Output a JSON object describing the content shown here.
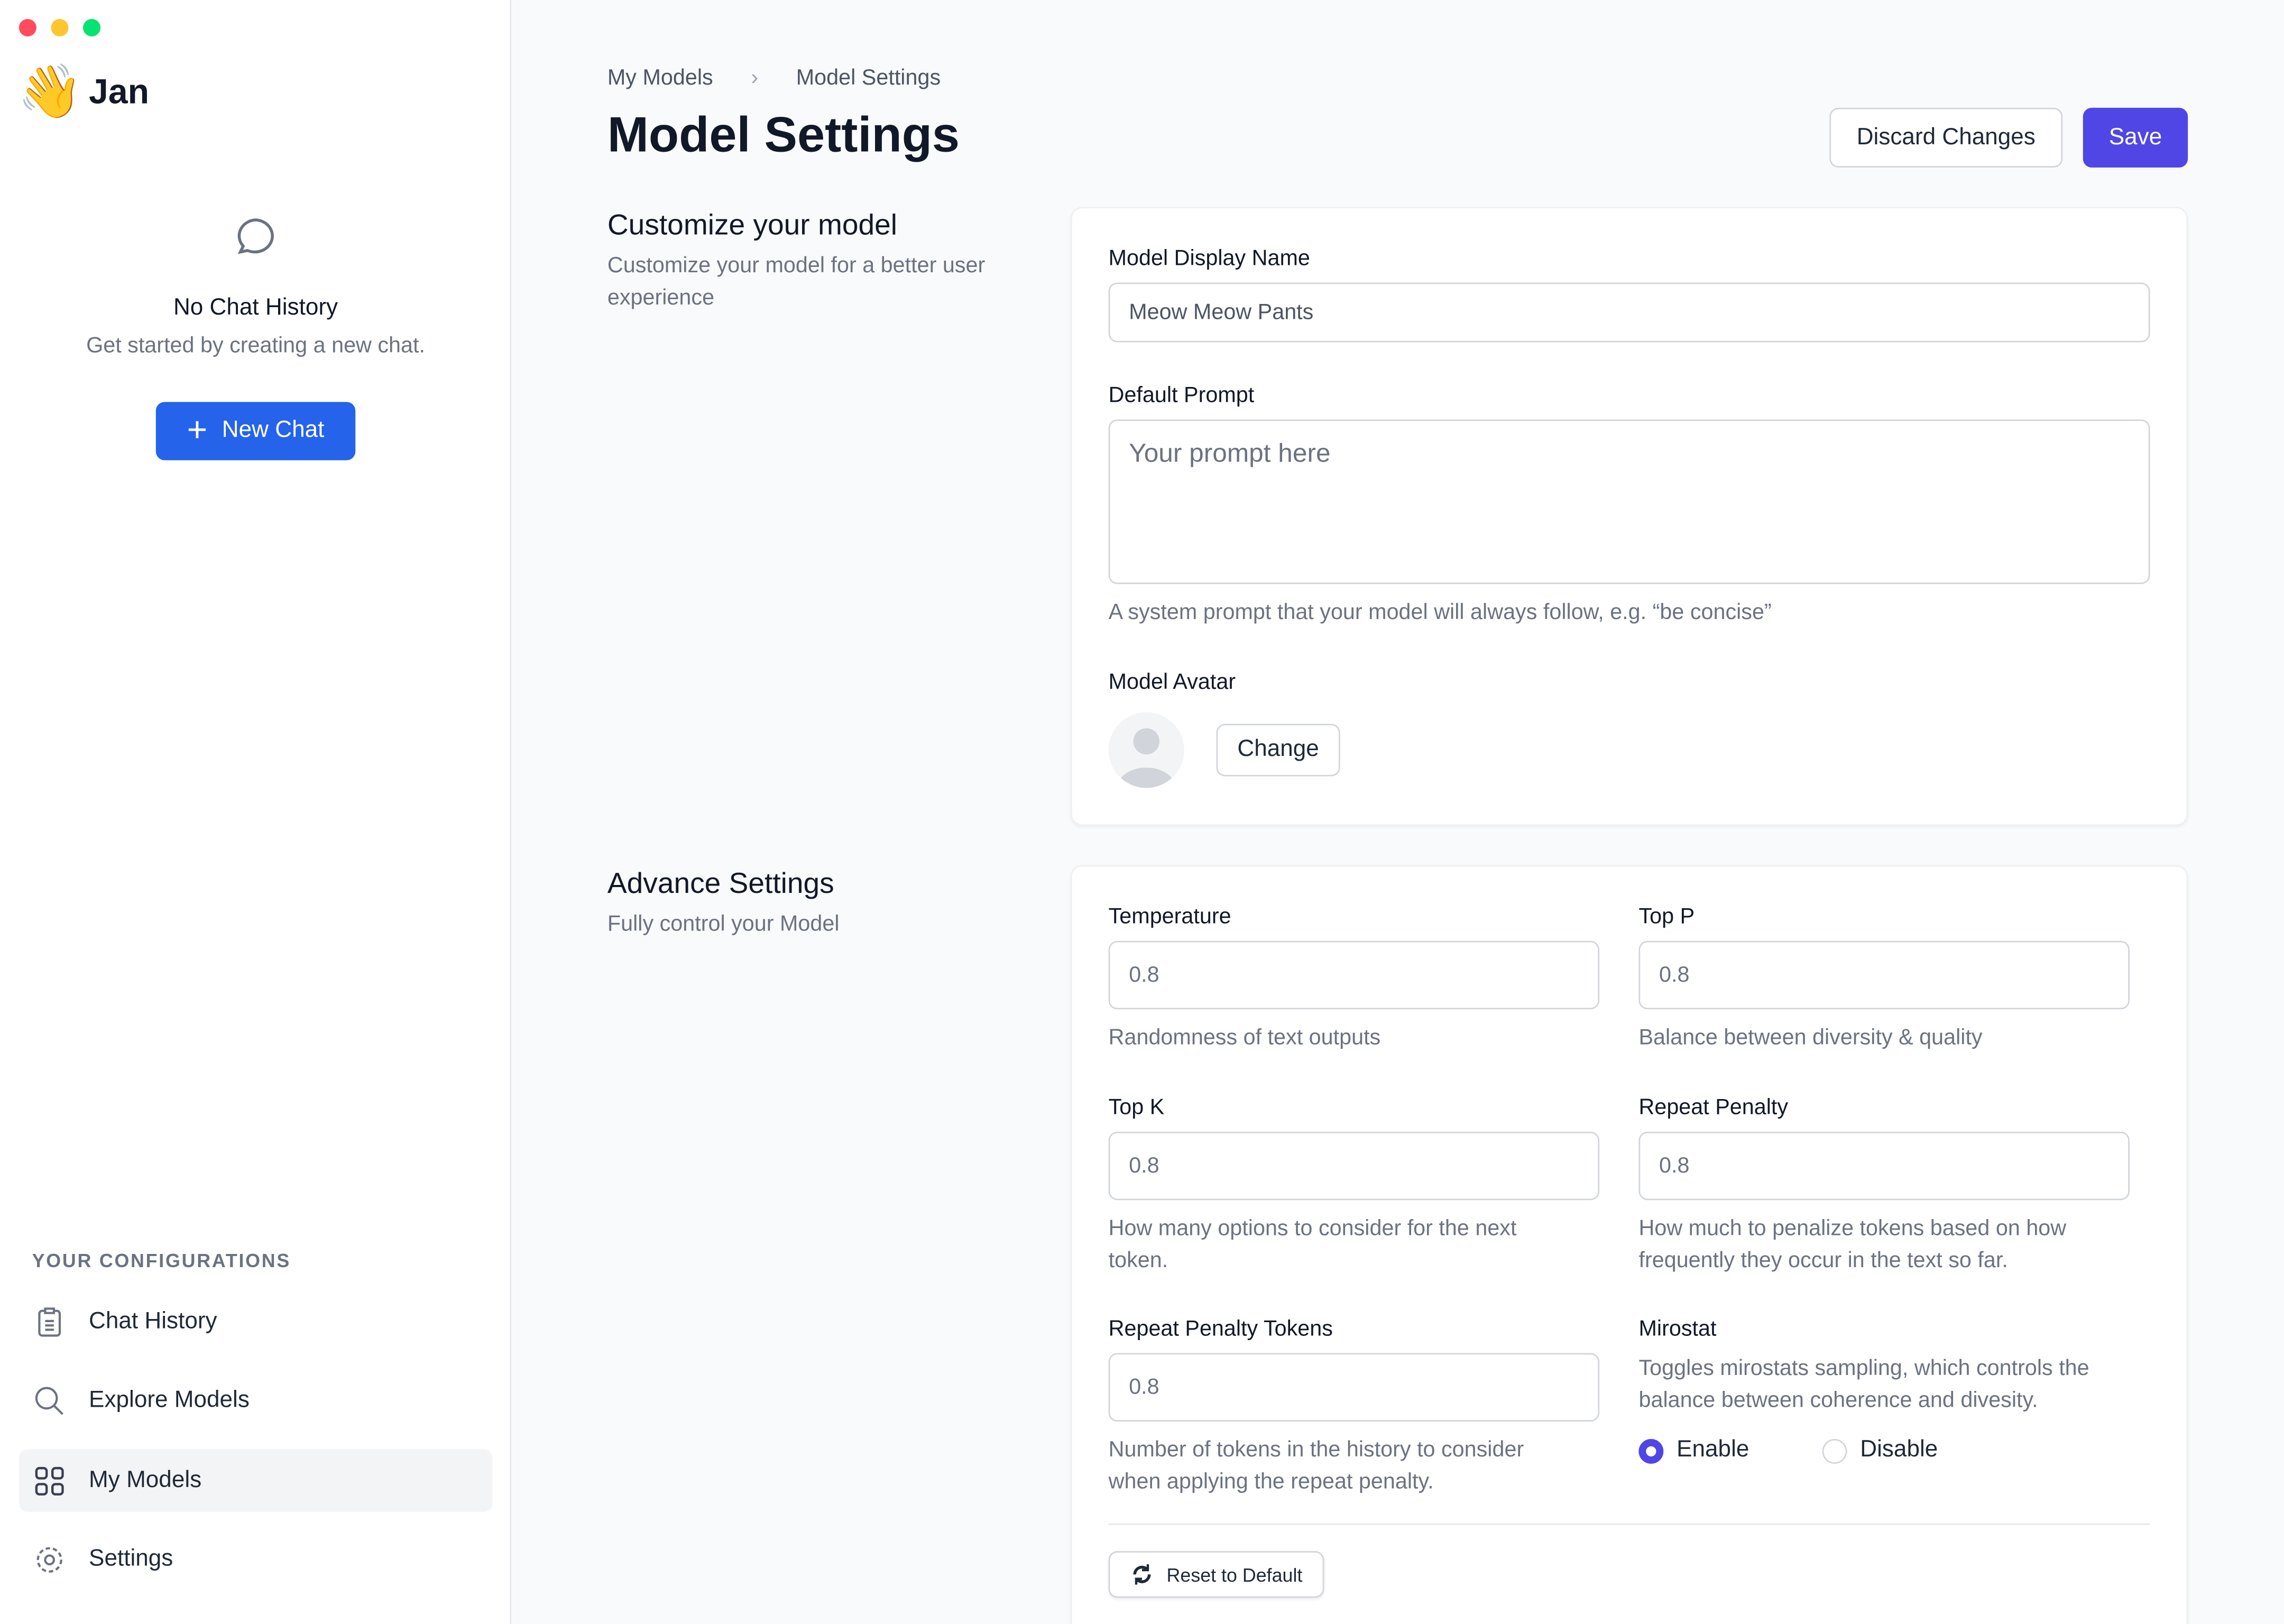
{
  "window": {
    "traffic_lights": {
      "close": "#ff4d5e",
      "minimize": "#fec52e",
      "zoom": "#08e273"
    }
  },
  "sidebar": {
    "app_name": "Jan",
    "logo_icon": "waving-hand-emoji",
    "empty_state": {
      "title": "No Chat History",
      "subtitle": "Get started by creating a new chat.",
      "button": "New Chat"
    },
    "section_title": "YOUR CONFIGURATIONS",
    "items": [
      {
        "label": "Chat History",
        "icon": "clipboard-icon",
        "active": false
      },
      {
        "label": "Explore Models",
        "icon": "search-icon",
        "active": false
      },
      {
        "label": "My Models",
        "icon": "grid-icon",
        "active": true
      },
      {
        "label": "Settings",
        "icon": "gear-icon",
        "active": false
      }
    ]
  },
  "header": {
    "breadcrumb": [
      "My Models",
      "Model Settings"
    ],
    "title": "Model Settings",
    "discard": "Discard Changes",
    "save": "Save"
  },
  "customize": {
    "title": "Customize your model",
    "description": "Customize your model for a better user experience",
    "display_name_label": "Model Display Name",
    "display_name_value": "Meow Meow Pants",
    "prompt_label": "Default Prompt",
    "prompt_placeholder": "Your prompt here",
    "prompt_help": "A system prompt that your model will always follow, e.g. “be concise”",
    "avatar_label": "Model Avatar",
    "change": "Change"
  },
  "advanced": {
    "title": "Advance Settings",
    "description": "Fully control your Model",
    "temperature": {
      "label": "Temperature",
      "value": "0.8",
      "help": "Randomness of text outputs"
    },
    "top_p": {
      "label": "Top P",
      "value": "0.8",
      "help": "Balance between diversity & quality"
    },
    "top_k": {
      "label": "Top K",
      "value": "0.8",
      "help": "How many options to consider for the next token."
    },
    "repeat_penalty": {
      "label": "Repeat Penalty",
      "value": "0.8",
      "help": "How much to penalize tokens based on how frequently they occur in the text so far."
    },
    "repeat_penalty_tokens": {
      "label": "Repeat Penalty Tokens",
      "value": "0.8",
      "help": "Number of tokens in the history to consider when applying the repeat penalty."
    },
    "mirostat": {
      "label": "Mirostat",
      "help": "Toggles mirostats sampling, which controls the balance between coherence and divesity.",
      "options": [
        "Enable",
        "Disable"
      ],
      "selected": "Enable"
    },
    "reset": "Reset to Default"
  },
  "colors": {
    "primary": "#4f46e5",
    "new_chat": "#2563eb"
  }
}
